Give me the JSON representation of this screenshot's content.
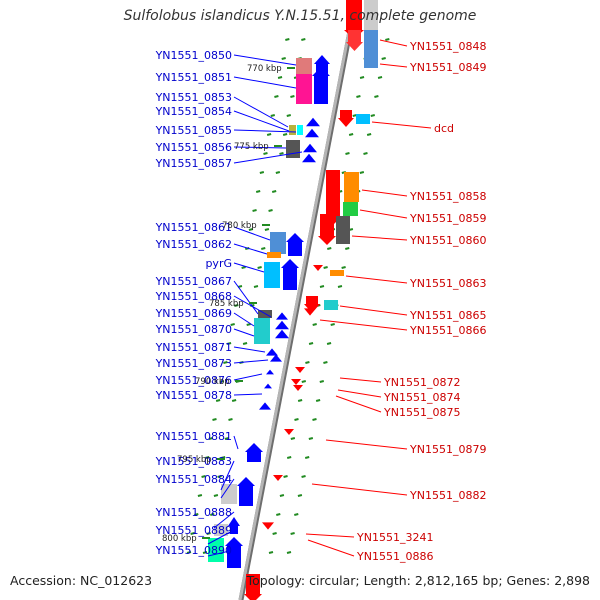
{
  "title": "Sulfolobus islandicus Y.N.15.51, complete genome",
  "footer": {
    "accession": "Accession: NC_012623",
    "info": "Topology: circular; Length: 2,812,165 bp; Genes: 2,898"
  },
  "colors": {
    "backbone": "#8a8a8a",
    "tick": "#228b22",
    "left_label": "#0000cc",
    "right_label": "#cc0000",
    "left_line": "#0000ff",
    "right_line": "#ff0000"
  },
  "kbp_markers": [
    "770 kbp",
    "775 kbp",
    "780 kbp",
    "785 kbp",
    "790 kbp",
    "795 kbp",
    "800 kbp"
  ],
  "left_labels": [
    "YN1551_0850",
    "YN1551_0851",
    "YN1551_0853",
    "YN1551_0854",
    "YN1551_0855",
    "YN1551_0856",
    "YN1551_0857",
    "YN1551_0861",
    "YN1551_0862",
    "pyrG",
    "YN1551_0867",
    "YN1551_0868",
    "YN1551_0869",
    "YN1551_0870",
    "YN1551_0871",
    "YN1551_0873",
    "YN1551_0876",
    "YN1551_0878",
    "YN1551_0881",
    "YN1551_0883",
    "YN1551_0884",
    "YN1551_0888",
    "YN1551_0889",
    "YN1551_0890"
  ],
  "right_labels": [
    "YN1551_0848",
    "YN1551_0849",
    "dcd",
    "YN1551_0858",
    "YN1551_0859",
    "YN1551_0860",
    "YN1551_0863",
    "YN1551_0865",
    "YN1551_0866",
    "YN1551_0872",
    "YN1551_0874",
    "YN1551_0875",
    "YN1551_0879",
    "YN1551_0882",
    "YN1551_3241",
    "YN1551_0886"
  ]
}
